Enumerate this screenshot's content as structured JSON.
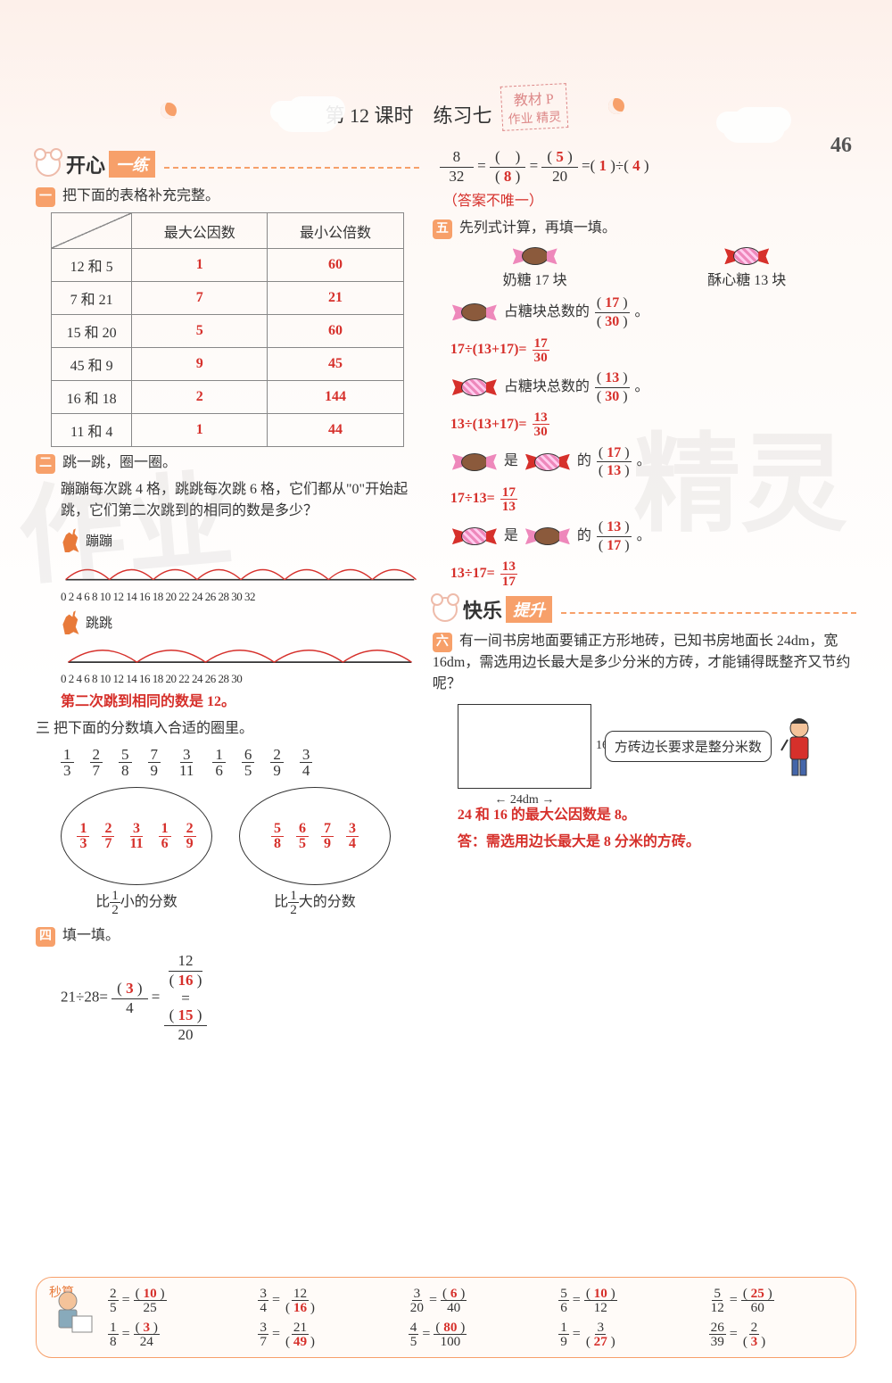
{
  "pageNumber": "46",
  "title": {
    "lesson": "第 12 课时",
    "name": "练习七",
    "stamp": "教材 P",
    "stamp2": "作业\n精灵"
  },
  "section1": {
    "head": "开心",
    "sub": "一练"
  },
  "section2": {
    "head": "快乐",
    "sub": "提升"
  },
  "q1": {
    "badge": "一",
    "text": "把下面的表格补充完整。",
    "headers": [
      "最大公因数",
      "最小公倍数"
    ],
    "rows": [
      {
        "label": "12 和 5",
        "gcd": "1",
        "lcm": "60"
      },
      {
        "label": "7 和 21",
        "gcd": "7",
        "lcm": "21"
      },
      {
        "label": "15 和 20",
        "gcd": "5",
        "lcm": "60"
      },
      {
        "label": "45 和 9",
        "gcd": "9",
        "lcm": "45"
      },
      {
        "label": "16 和 18",
        "gcd": "2",
        "lcm": "144"
      },
      {
        "label": "11 和 4",
        "gcd": "1",
        "lcm": "44"
      }
    ]
  },
  "q2": {
    "badge": "二",
    "text": "跳一跳，圈一圈。",
    "desc": "蹦蹦每次跳 4 格，跳跳每次跳 6 格，它们都从\"0\"开始起跳，它们第二次跳到的相同的数是多少？",
    "label1": "蹦蹦",
    "label2": "跳跳",
    "nums1": "0 2 4 6 8 10 12 14 16 18 20 22 24 26 28 30 32",
    "nums2": "0 2 4 6 8 10 12 14 16 18 20 22 24 26 28 30",
    "answer": "第二次跳到相同的数是 12。"
  },
  "q3": {
    "badge": "三",
    "text": "把下面的分数填入合适的圈里。",
    "fractions": [
      [
        "1",
        "3"
      ],
      [
        "2",
        "7"
      ],
      [
        "5",
        "8"
      ],
      [
        "7",
        "9"
      ],
      [
        "3",
        "11"
      ],
      [
        "1",
        "6"
      ],
      [
        "6",
        "5"
      ],
      [
        "2",
        "9"
      ],
      [
        "3",
        "4"
      ]
    ],
    "oval1": [
      [
        "1",
        "3"
      ],
      [
        "2",
        "7"
      ],
      [
        "3",
        "11"
      ],
      [
        "1",
        "6"
      ],
      [
        "2",
        "9"
      ]
    ],
    "oval2": [
      [
        "5",
        "8"
      ],
      [
        "6",
        "5"
      ],
      [
        "7",
        "9"
      ],
      [
        "3",
        "4"
      ]
    ],
    "label1": "比½小的分数",
    "label2": "比½大的分数",
    "l1a": "比",
    "l1b": "小的分数",
    "l2a": "比",
    "l2b": "大的分数",
    "half_n": "1",
    "half_d": "2"
  },
  "q4": {
    "badge": "四",
    "text": "填一填。",
    "line1": {
      "lhs": "21÷28=",
      "a_n": "3",
      "a_d": "4",
      "b_n": "12",
      "b_d": "16",
      "c_n": "15",
      "c_d": "20"
    },
    "line2": {
      "f1_n": "8",
      "f1_d": "32",
      "f2_n": "",
      "f2_d": "8",
      "f3_n": "5",
      "f3_d": "20",
      "eq": "=( ",
      "r1": "1",
      "mid": " )÷( ",
      "r2": "4",
      "end": " )"
    },
    "note": "（答案不唯一）"
  },
  "q5": {
    "badge": "五",
    "text": "先列式计算，再填一填。",
    "milk": "奶糖 17 块",
    "crisp": "酥心糖 13 块",
    "r1": {
      "t": "占糖块总数的",
      "n": "17",
      "d": "30"
    },
    "r1eq": {
      "lhs": "17÷(13+17)=",
      "n": "17",
      "d": "30"
    },
    "r2": {
      "t": "占糖块总数的",
      "n": "13",
      "d": "30"
    },
    "r2eq": {
      "lhs": "13÷(13+17)=",
      "n": "13",
      "d": "30"
    },
    "r3": {
      "t1": "是",
      "t2": "的",
      "n": "17",
      "d": "13"
    },
    "r3eq": {
      "lhs": "17÷13=",
      "n": "17",
      "d": "13"
    },
    "r4": {
      "t1": "是",
      "t2": "的",
      "n": "13",
      "d": "17"
    },
    "r4eq": {
      "lhs": "13÷17=",
      "n": "13",
      "d": "17"
    }
  },
  "q6": {
    "badge": "六",
    "text": "有一间书房地面要铺正方形地砖，已知书房地面长 24dm，宽 16dm，需选用边长最大是多少分米的方砖，才能铺得既整齐又节约呢？",
    "dimH": "24dm",
    "dimV": "16dm",
    "speech": "方砖边长要求是整分米数",
    "ans1": "24 和 16 的最大公因数是 8。",
    "ans2": "答：需选用边长最大是 8 分米的方砖。"
  },
  "footer": {
    "label": "秒算",
    "items": [
      {
        "a_n": "2",
        "a_d": "5",
        "b_n": "10",
        "b_d": "25",
        "fill": "n"
      },
      {
        "a_n": "3",
        "a_d": "4",
        "b_n": "12",
        "b_d": "16",
        "fill": "d"
      },
      {
        "a_n": "3",
        "a_d": "20",
        "b_n": "6",
        "b_d": "40",
        "fill": "n"
      },
      {
        "a_n": "5",
        "a_d": "6",
        "b_n": "10",
        "b_d": "12",
        "fill": "n"
      },
      {
        "a_n": "5",
        "a_d": "12",
        "b_n": "25",
        "b_d": "60",
        "fill": "n"
      },
      {
        "a_n": "1",
        "a_d": "8",
        "b_n": "3",
        "b_d": "24",
        "fill": "n"
      },
      {
        "a_n": "3",
        "a_d": "7",
        "b_n": "21",
        "b_d": "49",
        "fill": "d"
      },
      {
        "a_n": "4",
        "a_d": "5",
        "b_n": "80",
        "b_d": "100",
        "fill": "n"
      },
      {
        "a_n": "1",
        "a_d": "9",
        "b_n": "3",
        "b_d": "27",
        "fill": "d"
      },
      {
        "a_n": "26",
        "a_d": "39",
        "b_n": "2",
        "b_d": "3",
        "fill": "d"
      }
    ]
  },
  "colors": {
    "accent": "#f7a06a",
    "answer": "#d6302b",
    "text": "#333333"
  }
}
